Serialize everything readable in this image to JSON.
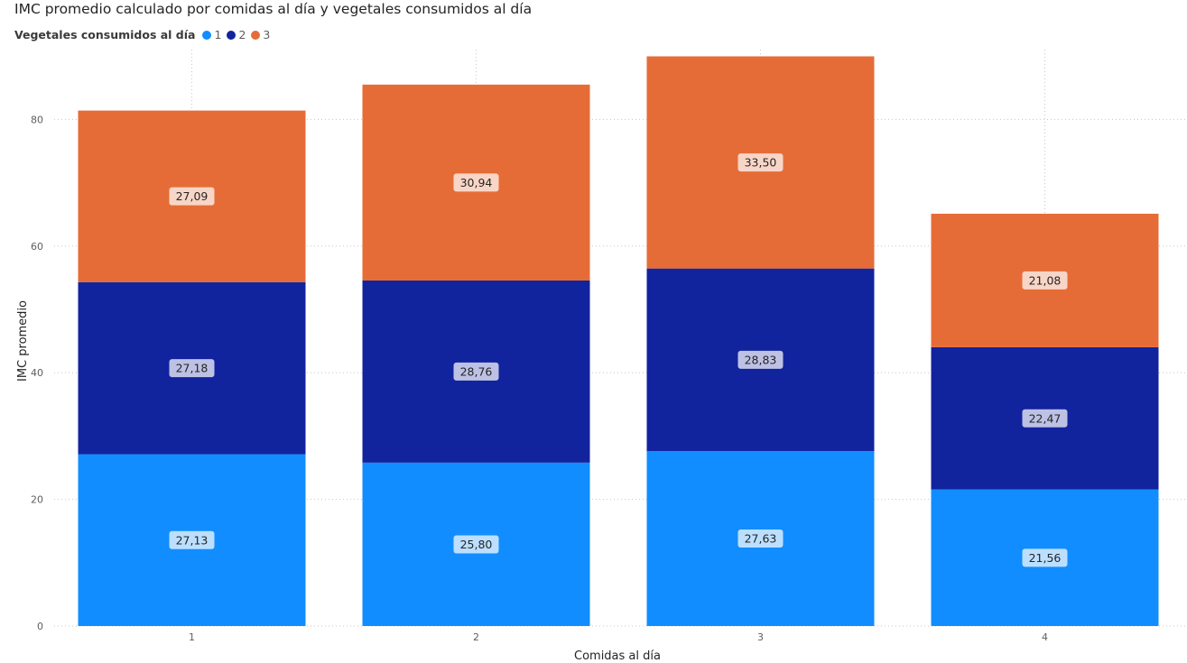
{
  "chart_data": {
    "type": "bar",
    "stacked": true,
    "title": "IMC promedio calculado por comidas al día y vegetales consumidos al día",
    "legend_title": "Vegetales consumidos al día",
    "legend_position": "top-left",
    "xlabel": "Comidas al día",
    "ylabel": "IMC promedio",
    "categories": [
      "1",
      "2",
      "3",
      "4"
    ],
    "ylim": [
      0,
      90
    ],
    "yticks": [
      0,
      20,
      40,
      60,
      80
    ],
    "ytick_labels": [
      "0",
      "20",
      "40",
      "60",
      "80"
    ],
    "grid": true,
    "series": [
      {
        "name": "1",
        "color": "#118DFF",
        "values": [
          27.13,
          25.8,
          27.63,
          21.56
        ],
        "labels": [
          "27,13",
          "25,80",
          "27,63",
          "21,56"
        ]
      },
      {
        "name": "2",
        "color": "#12239E",
        "values": [
          27.18,
          28.76,
          28.83,
          22.47
        ],
        "labels": [
          "27,18",
          "28,76",
          "28,83",
          "22,47"
        ]
      },
      {
        "name": "3",
        "color": "#E66C37",
        "values": [
          27.09,
          30.94,
          33.5,
          21.08
        ],
        "labels": [
          "27,09",
          "30,94",
          "33,50",
          "21,08"
        ]
      }
    ]
  }
}
